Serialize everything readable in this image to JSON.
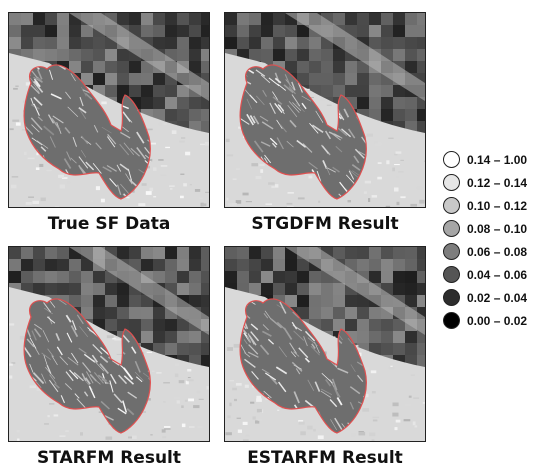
{
  "panels": [
    {
      "caption": "True SF Data"
    },
    {
      "caption": "STGDFM Result"
    },
    {
      "caption": "STARFM Result"
    },
    {
      "caption": "ESTARFM Result"
    }
  ],
  "legend": {
    "items": [
      {
        "label": "0.14 – 1.00",
        "color": "#ffffff"
      },
      {
        "label": "0.12 – 0.14",
        "color": "#e6e6e6"
      },
      {
        "label": "0.10 – 0.12",
        "color": "#c8c8c8"
      },
      {
        "label": "0.08 – 0.10",
        "color": "#a6a6a6"
      },
      {
        "label": "0.06 – 0.08",
        "color": "#7d7d7d"
      },
      {
        "label": "0.04 – 0.06",
        "color": "#555555"
      },
      {
        "label": "0.02 – 0.04",
        "color": "#2d2d2d"
      },
      {
        "label": "0.00 – 0.02",
        "color": "#000000"
      }
    ]
  },
  "colors": {
    "fire_boundary": "#e05050",
    "background": "#ffffff"
  }
}
